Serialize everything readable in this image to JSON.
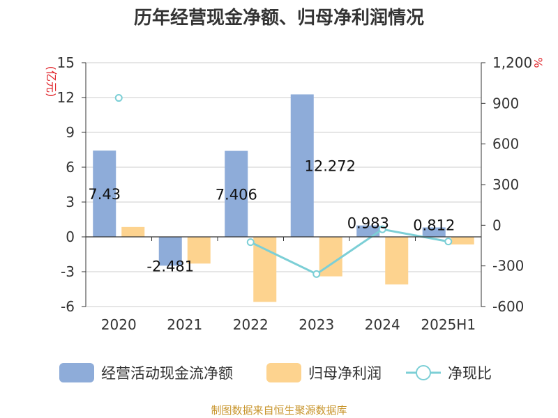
{
  "title": "历年经营现金净额、归母净利润情况",
  "source": "制图数据来自恒生聚源数据库",
  "colors": {
    "cash_flow": "#8eacd9",
    "net_profit": "#fdd38f",
    "ratio": "#7ccfd6",
    "unit": "#e0262c",
    "source": "#c8952c"
  },
  "chart_data": {
    "type": "bar",
    "categories": [
      "2020",
      "2021",
      "2022",
      "2023",
      "2024",
      "2025H1"
    ],
    "left_axis": {
      "unit": "(亿元)",
      "ylim": [
        -6,
        15
      ],
      "ticks": [
        "15",
        "12",
        "9",
        "6",
        "3",
        "0",
        "-3",
        "-6"
      ]
    },
    "right_axis": {
      "unit": "%",
      "ylim": [
        -600,
        1200
      ],
      "ticks": [
        "1,200",
        "900",
        "600",
        "300",
        "0",
        "-300",
        "-600"
      ]
    },
    "grid": true,
    "legend": "bottom",
    "series": [
      {
        "name": "经营活动现金流净额",
        "type": "bar",
        "axis": "left",
        "values": [
          7.43,
          -2.481,
          7.406,
          12.272,
          0.983,
          0.812
        ],
        "labels": [
          "7.43",
          "-2.481",
          "7.406",
          "12.272",
          "0.983",
          "0.812"
        ]
      },
      {
        "name": "归母净利润",
        "type": "bar",
        "axis": "left",
        "values": [
          0.85,
          -2.3,
          -5.6,
          -3.4,
          -4.1,
          -0.65
        ]
      },
      {
        "name": "净现比",
        "type": "line",
        "axis": "right",
        "values": [
          940,
          null,
          -125,
          -360,
          -30,
          -120
        ]
      }
    ]
  }
}
